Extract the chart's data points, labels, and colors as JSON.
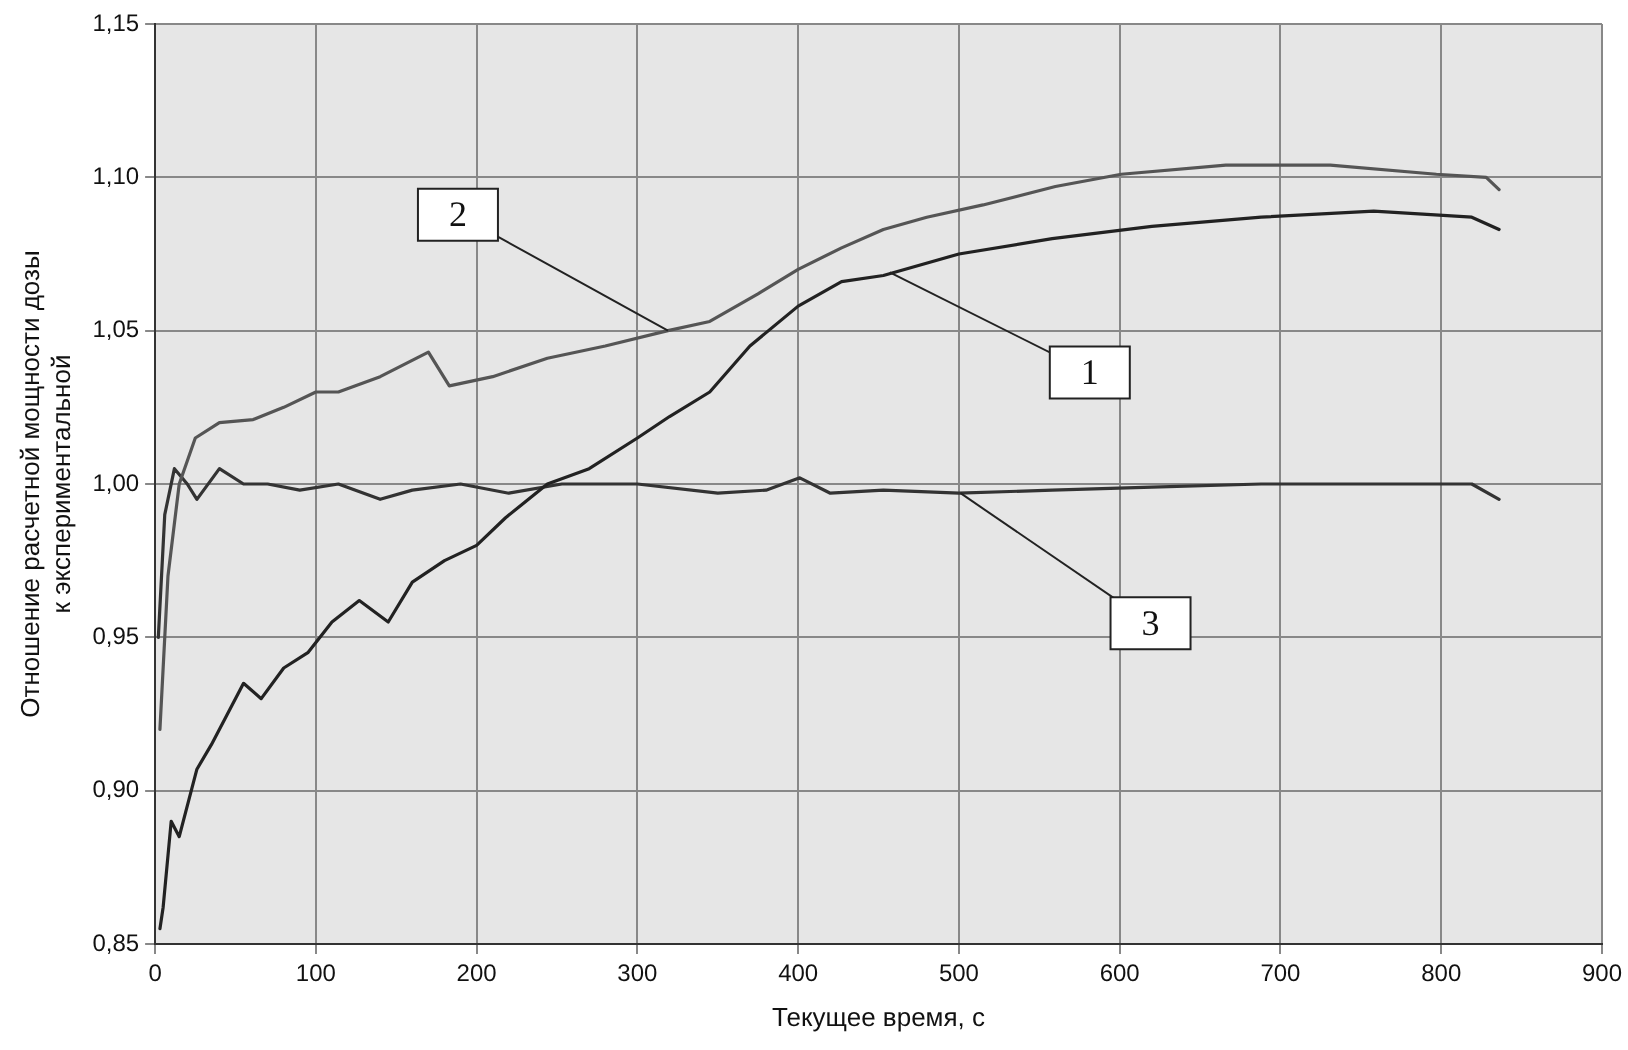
{
  "chart_data": {
    "type": "line",
    "xlabel": "Текущее время, с",
    "ylabel": "Отношение расчетной мощности дозы к экспериментальной",
    "xlim": [
      0,
      900
    ],
    "xticks": [
      0,
      100,
      200,
      300,
      400,
      500,
      600,
      700,
      800,
      900
    ],
    "ylim": [
      0.85,
      1.15
    ],
    "yticks": [
      {
        "value": 0.85,
        "label": "0,85"
      },
      {
        "value": 0.9,
        "label": "0,90"
      },
      {
        "value": 0.95,
        "label": "0,95"
      },
      {
        "value": 1.0,
        "label": "1,00"
      },
      {
        "value": 1.05,
        "label": "1,05"
      },
      {
        "value": 1.1,
        "label": "1,10"
      },
      {
        "value": 1.15,
        "label": "1,15"
      }
    ],
    "grid": true,
    "legend": false,
    "marker": "none",
    "line_style": "solid",
    "series": [
      {
        "color": "#222222",
        "x": [
          3,
          5,
          10,
          15,
          26,
          35,
          45,
          55,
          66,
          80,
          95,
          110,
          127,
          145,
          160,
          180,
          200,
          218,
          244,
          270,
          300,
          320,
          345,
          370,
          400,
          427,
          453,
          500,
          558,
          620,
          688,
          758,
          819,
          836
        ],
        "values": [
          0.855,
          0.862,
          0.89,
          0.885,
          0.907,
          0.915,
          0.925,
          0.935,
          0.93,
          0.94,
          0.945,
          0.955,
          0.962,
          0.955,
          0.968,
          0.975,
          0.98,
          0.989,
          1.0,
          1.005,
          1.015,
          1.022,
          1.03,
          1.045,
          1.058,
          1.066,
          1.068,
          1.075,
          1.08,
          1.084,
          1.087,
          1.089,
          1.087,
          1.083
        ]
      },
      {
        "color": "#555555",
        "x": [
          3,
          8,
          15,
          25,
          40,
          61,
          80,
          100,
          114,
          140,
          170,
          183,
          210,
          244,
          280,
          319,
          345,
          375,
          400,
          427,
          453,
          480,
          515,
          560,
          601,
          666,
          731,
          797,
          828,
          836
        ],
        "values": [
          0.92,
          0.97,
          1.0,
          1.015,
          1.02,
          1.021,
          1.025,
          1.03,
          1.03,
          1.035,
          1.043,
          1.032,
          1.035,
          1.041,
          1.045,
          1.05,
          1.053,
          1.062,
          1.07,
          1.077,
          1.083,
          1.087,
          1.091,
          1.097,
          1.101,
          1.104,
          1.104,
          1.101,
          1.1,
          1.096
        ]
      },
      {
        "color": "#333333",
        "x": [
          2,
          6,
          12,
          20,
          26,
          40,
          55,
          70,
          90,
          114,
          140,
          160,
          190,
          220,
          253,
          300,
          350,
          380,
          401,
          420,
          453,
          500,
          558,
          620,
          688,
          760,
          819,
          836
        ],
        "values": [
          0.95,
          0.99,
          1.005,
          1.0,
          0.995,
          1.005,
          1.0,
          1.0,
          0.998,
          1.0,
          0.995,
          0.998,
          1.0,
          0.997,
          1.0,
          1.0,
          0.997,
          0.998,
          1.002,
          0.997,
          0.998,
          0.997,
          0.998,
          0.999,
          1.0,
          1.0,
          1.0,
          0.995
        ]
      }
    ],
    "annotations": [
      {
        "text": "2",
        "x": 319,
        "y": 1.05
      },
      {
        "text": "1",
        "x": 457,
        "y": 1.069
      },
      {
        "text": "3",
        "x": 501,
        "y": 0.997
      }
    ]
  }
}
